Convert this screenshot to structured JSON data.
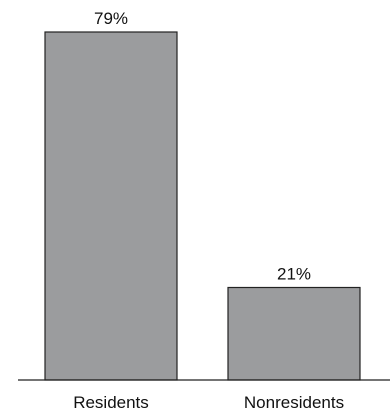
{
  "chart_data": {
    "type": "bar",
    "categories": [
      "Residents",
      "Nonresidents"
    ],
    "values": [
      79,
      21
    ],
    "data_labels": [
      "79%",
      "21%"
    ],
    "title": "",
    "xlabel": "",
    "ylabel": "",
    "ylim": [
      0,
      79
    ],
    "grid": false,
    "legend": "none",
    "bar_color": "#9b9c9e",
    "bar_edge_color": "#222222"
  }
}
